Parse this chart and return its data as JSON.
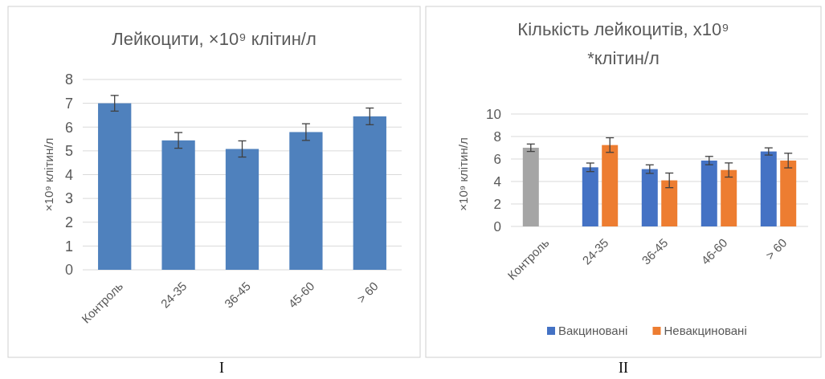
{
  "chart_data": [
    {
      "type": "bar",
      "title": "Лейкоцити, ×10⁹ клітин/л",
      "ylabel": "×10⁹ клітин/л",
      "categories": [
        "Контроль",
        "24-35",
        "36-45",
        "45-60",
        "> 60"
      ],
      "series": [
        {
          "color": "#4f81bd",
          "values": [
            7.0,
            5.44,
            5.08,
            5.79,
            6.45
          ],
          "errors": [
            0.33,
            0.33,
            0.34,
            0.35,
            0.35
          ]
        }
      ],
      "ylim": [
        0,
        8
      ],
      "yticks": [
        0,
        1,
        2,
        3,
        4,
        5,
        6,
        7,
        8
      ],
      "grid": "y",
      "legend": false,
      "annotations": [
        "I"
      ]
    },
    {
      "type": "bar",
      "title": "Кількість лейкоцитів, х10⁹ *клітин/л",
      "ylabel": "×10⁹ клітин/л",
      "categories": [
        "Контроль",
        "24-35",
        "36-45",
        "46-60",
        "> 60"
      ],
      "series": [
        {
          "name": "Вакциновані",
          "color": "#4472c4",
          "colors": [
            "#a5a5a5",
            "#4472c4",
            "#4472c4",
            "#4472c4",
            "#4472c4"
          ],
          "values": [
            7.0,
            5.26,
            5.1,
            5.86,
            6.67
          ],
          "errors": [
            0.33,
            0.38,
            0.38,
            0.37,
            0.32
          ]
        },
        {
          "name": "Невакциновані",
          "color": "#ed7d31",
          "values": [
            null,
            7.24,
            4.1,
            5.02,
            5.86
          ],
          "errors": [
            null,
            0.65,
            0.65,
            0.63,
            0.65
          ]
        }
      ],
      "ylim": [
        0,
        10
      ],
      "yticks": [
        0,
        2,
        4,
        6,
        8,
        10
      ],
      "grid": "y",
      "legend": "bottom",
      "annotations": [
        "II"
      ]
    }
  ]
}
